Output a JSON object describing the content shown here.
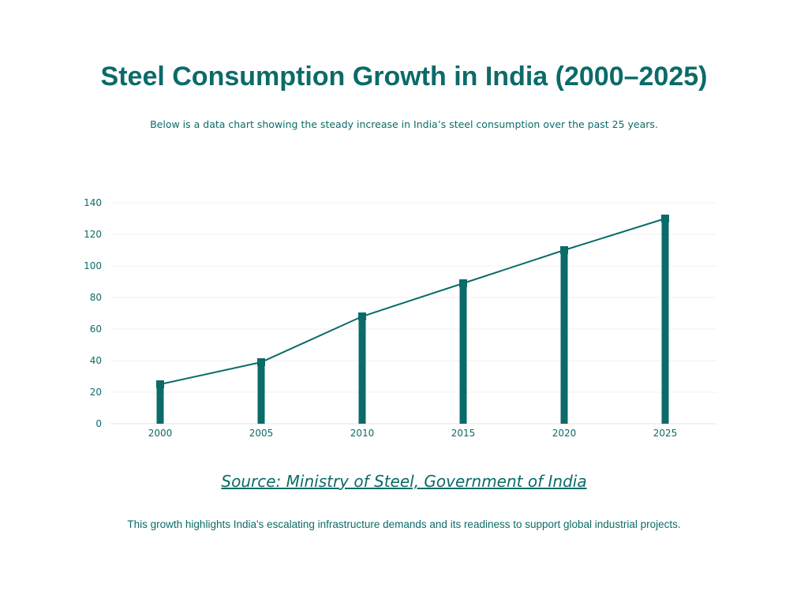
{
  "title": "Steel Consumption Growth in India (2000–2025)",
  "subtitle": "Below is a data chart showing the steady increase in India’s steel consumption over the past 25 years.",
  "source_link": "Source: Ministry of Steel, Government of India",
  "footer": "This growth highlights India's escalating infrastructure demands and its readiness to support global industrial projects.",
  "colors": {
    "primary": "#0b6b69",
    "grid": "#f0f0f0"
  },
  "chart_data": {
    "type": "bar+line",
    "title": "",
    "xlabel": "",
    "ylabel": "",
    "categories": [
      "2000",
      "2005",
      "2010",
      "2015",
      "2020",
      "2025"
    ],
    "values": [
      25,
      39,
      68,
      89,
      110,
      130
    ],
    "ylim": [
      0,
      140
    ],
    "yticks": [
      "0",
      "20",
      "40",
      "60",
      "80",
      "100",
      "120",
      "140"
    ],
    "grid": true,
    "legend": "none"
  }
}
